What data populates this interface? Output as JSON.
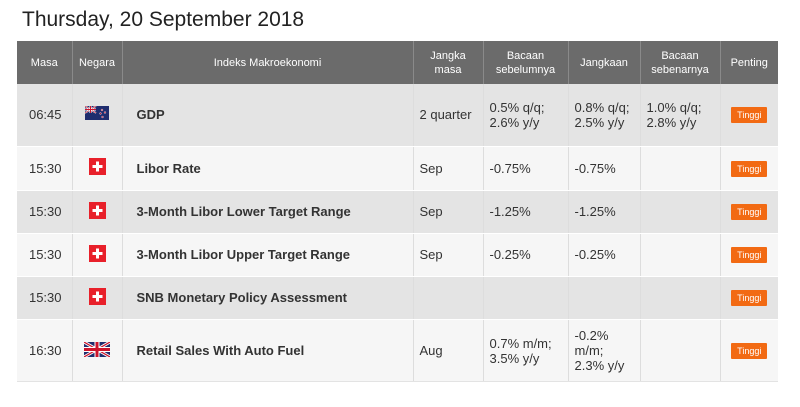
{
  "page": {
    "date_title": "Thursday, 20 September 2018"
  },
  "table": {
    "headers": {
      "time": "Masa",
      "country": "Negara",
      "indicator": "Indeks Makroekonomi",
      "period": "Jangka masa",
      "previous": "Bacaan sebelumnya",
      "forecast": "Jangkaan",
      "actual": "Bacaan sebenarnya",
      "importance": "Penting"
    },
    "rows": [
      {
        "time": "06:45",
        "flag": "new-zealand-flag-icon",
        "indicator": "GDP",
        "period": "2 quarter",
        "previous": "0.5% q/q; 2.6% y/y",
        "forecast": "0.8% q/q; 2.5% y/y",
        "actual": "1.0% q/q; 2.8% y/y",
        "importance": "Tinggi"
      },
      {
        "time": "15:30",
        "flag": "switzerland-flag-icon",
        "indicator": "Libor Rate",
        "period": "Sep",
        "previous": "-0.75%",
        "forecast": "-0.75%",
        "actual": "",
        "importance": "Tinggi"
      },
      {
        "time": "15:30",
        "flag": "switzerland-flag-icon",
        "indicator": "3-Month Libor Lower Target Range",
        "period": "Sep",
        "previous": "-1.25%",
        "forecast": "-1.25%",
        "actual": "",
        "importance": "Tinggi"
      },
      {
        "time": "15:30",
        "flag": "switzerland-flag-icon",
        "indicator": "3-Month Libor Upper Target Range",
        "period": "Sep",
        "previous": "-0.25%",
        "forecast": "-0.25%",
        "actual": "",
        "importance": "Tinggi"
      },
      {
        "time": "15:30",
        "flag": "switzerland-flag-icon",
        "indicator": "SNB Monetary Policy Assessment",
        "period": "",
        "previous": "",
        "forecast": "",
        "actual": "",
        "importance": "Tinggi"
      },
      {
        "time": "16:30",
        "flag": "united-kingdom-flag-icon",
        "indicator": "Retail Sales With Auto Fuel",
        "period": "Aug",
        "previous": "0.7% m/m; 3.5% y/y",
        "forecast": "-0.2% m/m; 2.3% y/y",
        "actual": "",
        "importance": "Tinggi"
      }
    ]
  },
  "colors": {
    "header_bg": "#6b6b6b",
    "badge": "#f26a13",
    "actual_text": "#2e9a1e",
    "row_shade": "#e4e4e4"
  }
}
